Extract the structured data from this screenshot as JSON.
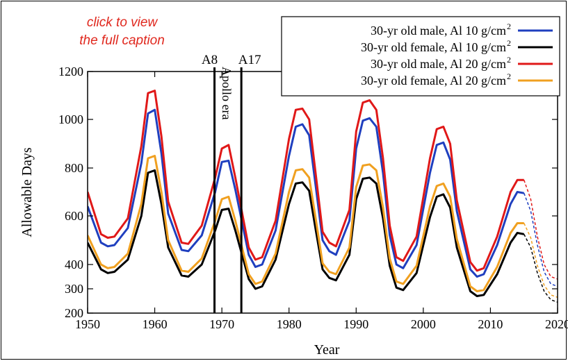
{
  "caption_link": {
    "line1": "click to view",
    "line2": "the full caption",
    "color": "#e0281e"
  },
  "chart_data": {
    "type": "line",
    "title": "",
    "xlabel": "Year",
    "ylabel": "Allowable Days",
    "xlim": [
      1950,
      2020
    ],
    "ylim": [
      200,
      1200
    ],
    "xticks": [
      1950,
      1960,
      1970,
      1980,
      1990,
      2000,
      2010,
      2020
    ],
    "yticks": [
      200,
      300,
      400,
      600,
      800,
      1000,
      1200
    ],
    "grid": false,
    "legend_position": "top-right",
    "projection_start_year": 2015,
    "annotations": [
      {
        "label": "A8",
        "year": 1968.9
      },
      {
        "label": "A17",
        "year": 1972.9
      },
      {
        "label": "Apollo era",
        "year": 1970.9
      }
    ],
    "series": [
      {
        "name": "30-yr old   male, Al 10 g/cm",
        "name_superscript": "2",
        "color": "#1f3fbf",
        "points": [
          [
            1950,
            640
          ],
          [
            1952,
            490
          ],
          [
            1953,
            475
          ],
          [
            1954,
            480
          ],
          [
            1956,
            550
          ],
          [
            1958,
            820
          ],
          [
            1959,
            1025
          ],
          [
            1960,
            1040
          ],
          [
            1961,
            860
          ],
          [
            1962,
            610
          ],
          [
            1964,
            460
          ],
          [
            1965,
            455
          ],
          [
            1967,
            520
          ],
          [
            1969,
            700
          ],
          [
            1970,
            825
          ],
          [
            1971,
            830
          ],
          [
            1972,
            710
          ],
          [
            1974,
            440
          ],
          [
            1975,
            390
          ],
          [
            1976,
            400
          ],
          [
            1978,
            540
          ],
          [
            1980,
            850
          ],
          [
            1981,
            970
          ],
          [
            1982,
            980
          ],
          [
            1983,
            935
          ],
          [
            1984,
            720
          ],
          [
            1985,
            500
          ],
          [
            1986,
            455
          ],
          [
            1987,
            440
          ],
          [
            1989,
            580
          ],
          [
            1990,
            880
          ],
          [
            1991,
            995
          ],
          [
            1992,
            1005
          ],
          [
            1993,
            970
          ],
          [
            1994,
            780
          ],
          [
            1995,
            520
          ],
          [
            1996,
            400
          ],
          [
            1997,
            385
          ],
          [
            1999,
            480
          ],
          [
            2001,
            780
          ],
          [
            2002,
            895
          ],
          [
            2003,
            905
          ],
          [
            2004,
            835
          ],
          [
            2005,
            620
          ],
          [
            2007,
            380
          ],
          [
            2008,
            350
          ],
          [
            2009,
            360
          ],
          [
            2011,
            480
          ],
          [
            2013,
            650
          ],
          [
            2014,
            700
          ],
          [
            2015,
            695
          ],
          [
            2016,
            620
          ],
          [
            2017,
            480
          ],
          [
            2018,
            370
          ],
          [
            2019,
            320
          ],
          [
            2020,
            310
          ]
        ]
      },
      {
        "name": "30-yr old female, Al 10 g/cm",
        "name_superscript": "2",
        "color": "#000000",
        "points": [
          [
            1950,
            490
          ],
          [
            1952,
            380
          ],
          [
            1953,
            365
          ],
          [
            1954,
            370
          ],
          [
            1956,
            420
          ],
          [
            1958,
            600
          ],
          [
            1959,
            780
          ],
          [
            1960,
            790
          ],
          [
            1961,
            650
          ],
          [
            1962,
            470
          ],
          [
            1964,
            355
          ],
          [
            1965,
            350
          ],
          [
            1967,
            400
          ],
          [
            1969,
            540
          ],
          [
            1970,
            625
          ],
          [
            1971,
            630
          ],
          [
            1972,
            540
          ],
          [
            1974,
            340
          ],
          [
            1975,
            300
          ],
          [
            1976,
            310
          ],
          [
            1978,
            420
          ],
          [
            1980,
            650
          ],
          [
            1981,
            735
          ],
          [
            1982,
            740
          ],
          [
            1983,
            705
          ],
          [
            1984,
            540
          ],
          [
            1985,
            380
          ],
          [
            1986,
            345
          ],
          [
            1987,
            335
          ],
          [
            1989,
            440
          ],
          [
            1990,
            670
          ],
          [
            1991,
            755
          ],
          [
            1992,
            760
          ],
          [
            1993,
            735
          ],
          [
            1994,
            590
          ],
          [
            1995,
            395
          ],
          [
            1996,
            305
          ],
          [
            1997,
            295
          ],
          [
            1999,
            365
          ],
          [
            2001,
            595
          ],
          [
            2002,
            680
          ],
          [
            2003,
            690
          ],
          [
            2004,
            635
          ],
          [
            2005,
            470
          ],
          [
            2007,
            290
          ],
          [
            2008,
            270
          ],
          [
            2009,
            275
          ],
          [
            2011,
            360
          ],
          [
            2013,
            490
          ],
          [
            2014,
            530
          ],
          [
            2015,
            525
          ],
          [
            2016,
            470
          ],
          [
            2017,
            365
          ],
          [
            2018,
            290
          ],
          [
            2019,
            255
          ],
          [
            2020,
            245
          ]
        ]
      },
      {
        "name": "30-yr old   male, Al 20 g/cm",
        "name_superscript": "2",
        "color": "#e01818",
        "points": [
          [
            1950,
            700
          ],
          [
            1952,
            525
          ],
          [
            1953,
            510
          ],
          [
            1954,
            515
          ],
          [
            1956,
            590
          ],
          [
            1958,
            890
          ],
          [
            1959,
            1110
          ],
          [
            1960,
            1120
          ],
          [
            1961,
            930
          ],
          [
            1962,
            660
          ],
          [
            1964,
            490
          ],
          [
            1965,
            485
          ],
          [
            1967,
            560
          ],
          [
            1969,
            760
          ],
          [
            1970,
            880
          ],
          [
            1971,
            895
          ],
          [
            1972,
            760
          ],
          [
            1974,
            470
          ],
          [
            1975,
            420
          ],
          [
            1976,
            430
          ],
          [
            1978,
            580
          ],
          [
            1980,
            920
          ],
          [
            1981,
            1040
          ],
          [
            1982,
            1045
          ],
          [
            1983,
            1000
          ],
          [
            1984,
            770
          ],
          [
            1985,
            535
          ],
          [
            1986,
            490
          ],
          [
            1987,
            475
          ],
          [
            1989,
            625
          ],
          [
            1990,
            950
          ],
          [
            1991,
            1070
          ],
          [
            1992,
            1080
          ],
          [
            1993,
            1040
          ],
          [
            1994,
            840
          ],
          [
            1995,
            560
          ],
          [
            1996,
            430
          ],
          [
            1997,
            415
          ],
          [
            1999,
            515
          ],
          [
            2001,
            840
          ],
          [
            2002,
            960
          ],
          [
            2003,
            970
          ],
          [
            2004,
            900
          ],
          [
            2005,
            665
          ],
          [
            2007,
            410
          ],
          [
            2008,
            375
          ],
          [
            2009,
            385
          ],
          [
            2011,
            515
          ],
          [
            2013,
            700
          ],
          [
            2014,
            750
          ],
          [
            2015,
            750
          ],
          [
            2016,
            670
          ],
          [
            2017,
            515
          ],
          [
            2018,
            400
          ],
          [
            2019,
            350
          ],
          [
            2020,
            340
          ]
        ]
      },
      {
        "name": "30-yr old female, Al 20 g/cm",
        "name_superscript": "2",
        "color": "#f0a020",
        "points": [
          [
            1950,
            520
          ],
          [
            1952,
            400
          ],
          [
            1953,
            385
          ],
          [
            1954,
            390
          ],
          [
            1956,
            445
          ],
          [
            1958,
            650
          ],
          [
            1959,
            840
          ],
          [
            1960,
            850
          ],
          [
            1961,
            700
          ],
          [
            1962,
            500
          ],
          [
            1964,
            375
          ],
          [
            1965,
            370
          ],
          [
            1967,
            425
          ],
          [
            1969,
            580
          ],
          [
            1970,
            670
          ],
          [
            1971,
            680
          ],
          [
            1972,
            580
          ],
          [
            1974,
            360
          ],
          [
            1975,
            320
          ],
          [
            1976,
            330
          ],
          [
            1978,
            445
          ],
          [
            1980,
            700
          ],
          [
            1981,
            790
          ],
          [
            1982,
            795
          ],
          [
            1983,
            760
          ],
          [
            1984,
            585
          ],
          [
            1985,
            405
          ],
          [
            1986,
            370
          ],
          [
            1987,
            360
          ],
          [
            1989,
            470
          ],
          [
            1990,
            720
          ],
          [
            1991,
            810
          ],
          [
            1992,
            815
          ],
          [
            1993,
            790
          ],
          [
            1994,
            635
          ],
          [
            1995,
            425
          ],
          [
            1996,
            330
          ],
          [
            1997,
            320
          ],
          [
            1999,
            395
          ],
          [
            2001,
            640
          ],
          [
            2002,
            725
          ],
          [
            2003,
            735
          ],
          [
            2004,
            680
          ],
          [
            2005,
            505
          ],
          [
            2007,
            310
          ],
          [
            2008,
            290
          ],
          [
            2009,
            295
          ],
          [
            2011,
            390
          ],
          [
            2013,
            530
          ],
          [
            2014,
            570
          ],
          [
            2015,
            570
          ],
          [
            2016,
            510
          ],
          [
            2017,
            395
          ],
          [
            2018,
            315
          ],
          [
            2019,
            275
          ],
          [
            2020,
            265
          ]
        ]
      }
    ]
  }
}
